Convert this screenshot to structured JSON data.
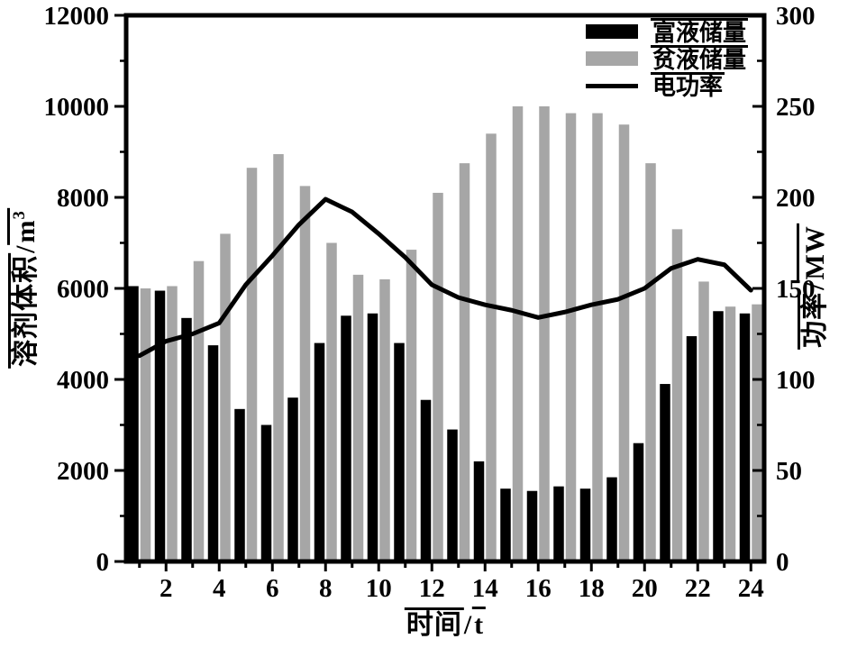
{
  "figure": {
    "background": "#ffffff",
    "frame_color": "#000000",
    "bar_gray": "#a6a6a6",
    "bar_black": "#000000"
  },
  "axes": {
    "left": {
      "label_full": "溶剂体积/m³",
      "label_cjk": "溶剂体积",
      "separator": "/",
      "unit_base": "m",
      "unit_sup": "3",
      "ticks": [
        0,
        2000,
        4000,
        6000,
        8000,
        10000,
        12000
      ],
      "minor_step": 1000,
      "range": [
        0,
        12000
      ]
    },
    "right": {
      "label_full": "功率/MW",
      "label_cjk": "功率",
      "separator": "/",
      "unit_base": "MW",
      "unit_sup": "",
      "ticks": [
        0,
        50,
        100,
        150,
        200,
        250,
        300
      ],
      "minor_step": 25,
      "range": [
        0,
        300
      ]
    },
    "x": {
      "label_full": "时间/t",
      "label_cjk": "时间",
      "separator": "/",
      "unit_base": "t",
      "unit_sup": "",
      "ticks": [
        2,
        4,
        6,
        8,
        10,
        12,
        14,
        16,
        18,
        20,
        22,
        24
      ],
      "hours": 24
    }
  },
  "chart_data": {
    "type": "bar",
    "title": "",
    "grid": false,
    "legend_position": "top-right",
    "x": [
      1,
      2,
      3,
      4,
      5,
      6,
      7,
      8,
      9,
      10,
      11,
      12,
      13,
      14,
      15,
      16,
      17,
      18,
      19,
      20,
      21,
      22,
      23,
      24
    ],
    "xlabel": "时间/t",
    "ylabel_left": "溶剂体积/m³",
    "ylabel_right": "功率/MW",
    "left_ylim": [
      0,
      12000
    ],
    "right_ylim": [
      0,
      300
    ],
    "series": [
      {
        "name": "富液储量",
        "key": "rich-liquid-storage",
        "type": "bar",
        "axis": "left",
        "color": "#000000",
        "values": [
          6050,
          5950,
          5350,
          4750,
          3350,
          3000,
          3600,
          4800,
          5400,
          5450,
          4800,
          3550,
          2900,
          2200,
          1600,
          1550,
          1650,
          1600,
          1850,
          2600,
          3900,
          4950,
          5500,
          5450
        ]
      },
      {
        "name": "贫液储量",
        "key": "lean-liquid-storage",
        "type": "bar",
        "axis": "left",
        "color": "#a6a6a6",
        "values": [
          6000,
          6050,
          6600,
          7200,
          8650,
          8950,
          8250,
          7000,
          6300,
          6200,
          6850,
          8100,
          8750,
          9400,
          10000,
          10000,
          9850,
          9850,
          9600,
          8750,
          7300,
          6150,
          5600,
          5650
        ]
      },
      {
        "name": "电功率",
        "key": "electric-power",
        "type": "line",
        "axis": "right",
        "color": "#000000",
        "values": [
          113,
          121,
          125,
          131,
          152,
          168,
          185,
          199,
          192,
          180,
          167,
          152,
          145,
          141,
          138,
          134,
          137,
          141,
          144,
          150,
          161,
          166,
          163,
          149
        ]
      }
    ]
  }
}
